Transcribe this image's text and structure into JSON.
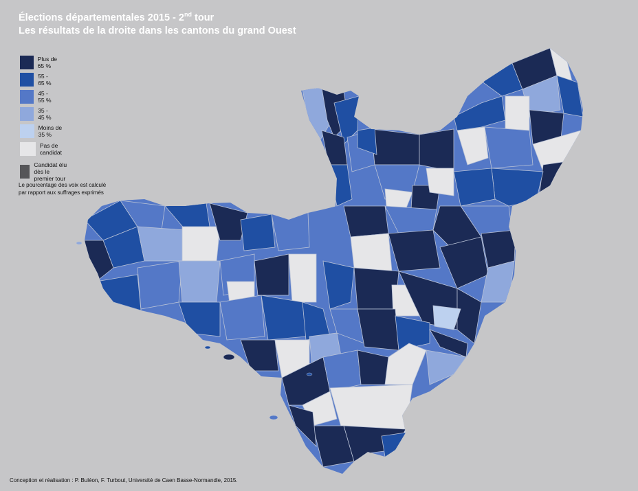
{
  "title": {
    "line1_prefix": "Élections départementales 2015 - 2",
    "line1_sup": "nd",
    "line1_suffix": " tour",
    "line2": "Les résultats de la droite dans les cantons du grand Ouest"
  },
  "legend": {
    "items": [
      {
        "label": "Plus de 65 %",
        "color": "#1b2a55"
      },
      {
        "label": "55 - 65 %",
        "color": "#1f4fa3"
      },
      {
        "label": "45 - 55 %",
        "color": "#5478c7"
      },
      {
        "label": "35 - 45 %",
        "color": "#8fa8dc"
      },
      {
        "label": "Moins de 35 %",
        "color": "#bdd1ef"
      },
      {
        "label": "Pas de candidat",
        "color": "#e6e6e8"
      },
      {
        "label": "Candidat élu dès le premier tour",
        "color": "#555558"
      }
    ]
  },
  "note": {
    "line1": "Le pourcentage des voix est calculé",
    "line2": "par rapport aux suffrages exprimés"
  },
  "credit": "Conception et réalisation : P. Buléon, F. Turbout, Université de Caen Basse-Normandie, 2015.",
  "colors": {
    "background": "#c6c6c8",
    "border": "#b9c2d6"
  }
}
